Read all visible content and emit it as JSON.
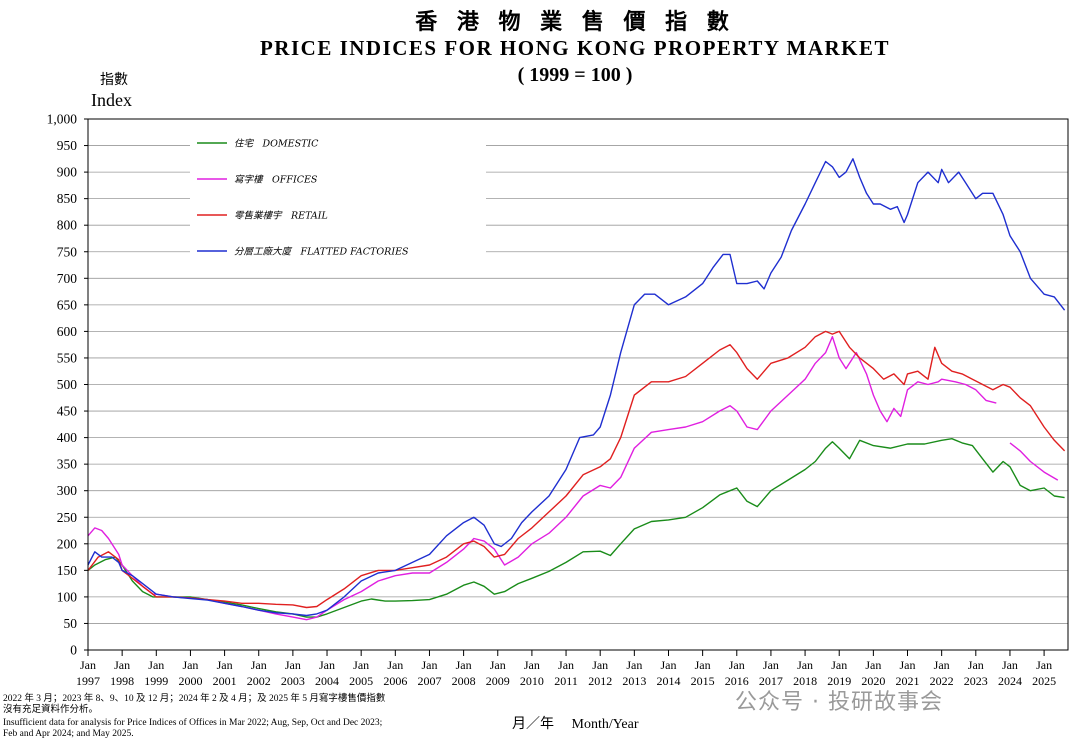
{
  "title_cn": "香 港 物 業 售 價 指 數",
  "title_en": "PRICE INDICES FOR HONG KONG PROPERTY MARKET",
  "base_note": "( 1999 = 100 )",
  "ylabel_cn": "指數",
  "xlabel": "月／年 　Month/Year",
  "footnote": {
    "line1": "2022 年 3 月；2023 年 8、9、10 及 12 月；2024 年 2 及 4 月；及 2025 年 5 月寫字樓售價指數",
    "line2": "沒有充足資料作分析。",
    "line3": "Insufficient data for analysis for Price Indices of Offices in Mar 2022; Aug, Sep, Oct and Dec 2023;",
    "line4": "Feb and Apr 2024; and May 2025."
  },
  "watermark": "公众号 · 投研故事会",
  "chart_data": {
    "type": "line",
    "title": "PRICE INDICES FOR HONG KONG PROPERTY MARKET (1999 = 100)",
    "xlabel": "月／年 Month/Year",
    "ylabel": "Index",
    "xlim": [
      1997.0,
      2025.7
    ],
    "ylim": [
      0,
      1000
    ],
    "grid": true,
    "y_ticks": [
      0,
      50,
      100,
      150,
      200,
      250,
      300,
      350,
      400,
      450,
      500,
      550,
      600,
      650,
      700,
      750,
      800,
      850,
      900,
      950,
      1000
    ],
    "y_tick_labels": [
      "0",
      "50",
      "100",
      "150",
      "200",
      "250",
      "300",
      "350",
      "400",
      "450",
      "500",
      "550",
      "600",
      "650",
      "700",
      "750",
      "800",
      "850",
      "900",
      "950",
      "1,000"
    ],
    "x_ticks": [
      1997,
      1998,
      1999,
      2000,
      2001,
      2002,
      2003,
      2004,
      2005,
      2006,
      2007,
      2008,
      2009,
      2010,
      2011,
      2012,
      2013,
      2014,
      2015,
      2016,
      2017,
      2018,
      2019,
      2020,
      2021,
      2022,
      2023,
      2024,
      2025
    ],
    "x_tick_month": "Jan",
    "x_tick_labels": [
      "1997",
      "1998",
      "1999",
      "2000",
      "2001",
      "2002",
      "2003",
      "2004",
      "2005",
      "2006",
      "2007",
      "2008",
      "2009",
      "2010",
      "2011",
      "2012",
      "2013",
      "2014",
      "2015",
      "2016",
      "2017",
      "2018",
      "2019",
      "2020",
      "2021",
      "2022",
      "2023",
      "2024",
      "2025"
    ],
    "legend_position": "top-left",
    "series": [
      {
        "name": "住宅　DOMESTIC",
        "color": "#1a8c1a",
        "x": [
          1997.0,
          1997.2,
          1997.5,
          1997.8,
          1998.0,
          1998.3,
          1998.6,
          1998.9,
          1999.0,
          1999.5,
          2000.0,
          2000.5,
          2001.0,
          2001.5,
          2002.0,
          2002.5,
          2003.0,
          2003.4,
          2003.7,
          2004.0,
          2004.5,
          2005.0,
          2005.3,
          2005.7,
          2006.0,
          2006.5,
          2007.0,
          2007.5,
          2008.0,
          2008.3,
          2008.6,
          2008.9,
          2009.2,
          2009.6,
          2010.0,
          2010.5,
          2011.0,
          2011.5,
          2012.0,
          2012.3,
          2012.6,
          2013.0,
          2013.5,
          2014.0,
          2014.5,
          2015.0,
          2015.5,
          2015.8,
          2016.0,
          2016.3,
          2016.6,
          2017.0,
          2017.5,
          2018.0,
          2018.3,
          2018.6,
          2018.8,
          2019.0,
          2019.3,
          2019.6,
          2020.0,
          2020.5,
          2021.0,
          2021.5,
          2022.0,
          2022.3,
          2022.6,
          2022.9,
          2023.2,
          2023.5,
          2023.8,
          2024.0,
          2024.3,
          2024.6,
          2025.0,
          2025.3,
          2025.6
        ],
        "values": [
          150,
          160,
          170,
          175,
          160,
          130,
          110,
          100,
          100,
          100,
          100,
          95,
          90,
          85,
          78,
          72,
          68,
          62,
          62,
          68,
          80,
          92,
          96,
          92,
          92,
          93,
          95,
          105,
          122,
          128,
          120,
          105,
          110,
          125,
          135,
          148,
          165,
          185,
          186,
          178,
          200,
          228,
          242,
          245,
          250,
          268,
          292,
          300,
          305,
          280,
          270,
          300,
          320,
          340,
          355,
          380,
          392,
          380,
          360,
          395,
          385,
          380,
          388,
          388,
          395,
          398,
          390,
          385,
          360,
          335,
          355,
          345,
          310,
          300,
          305,
          290,
          287
        ]
      },
      {
        "name": "寫字樓　OFFICES",
        "color": "#e020e0",
        "x": [
          1997.0,
          1997.2,
          1997.4,
          1997.6,
          1997.9,
          1998.0,
          1998.3,
          1998.6,
          1998.9,
          1999.0,
          1999.5,
          2000.0,
          2000.5,
          2001.0,
          2001.5,
          2002.0,
          2002.5,
          2003.0,
          2003.4,
          2003.7,
          2004.0,
          2004.5,
          2005.0,
          2005.5,
          2006.0,
          2006.5,
          2007.0,
          2007.5,
          2008.0,
          2008.3,
          2008.6,
          2008.9,
          2009.2,
          2009.6,
          2010.0,
          2010.5,
          2011.0,
          2011.5,
          2012.0,
          2012.3,
          2012.6,
          2013.0,
          2013.5,
          2014.0,
          2014.5,
          2015.0,
          2015.5,
          2015.8,
          2016.0,
          2016.3,
          2016.6,
          2017.0,
          2017.5,
          2018.0,
          2018.3,
          2018.6,
          2018.8,
          2019.0,
          2019.2,
          2019.5,
          2019.8,
          2020.0,
          2020.2,
          2020.4,
          2020.6,
          2020.8,
          2021.0,
          2021.3,
          2021.6,
          2021.9,
          2022.0,
          2022.4,
          2022.7,
          2023.0,
          2023.3,
          2023.6
        ],
        "values": [
          215,
          230,
          225,
          210,
          180,
          160,
          140,
          120,
          105,
          105,
          100,
          98,
          95,
          88,
          82,
          75,
          68,
          62,
          57,
          62,
          75,
          95,
          110,
          130,
          140,
          145,
          145,
          165,
          190,
          210,
          205,
          190,
          160,
          175,
          200,
          220,
          250,
          290,
          310,
          305,
          325,
          380,
          410,
          415,
          420,
          430,
          450,
          460,
          450,
          420,
          415,
          450,
          480,
          510,
          540,
          560,
          590,
          550,
          530,
          560,
          520,
          480,
          450,
          430,
          455,
          440,
          490,
          505,
          500,
          505,
          510,
          505,
          500,
          490,
          470,
          465
        ]
      },
      {
        "name": "寫字樓　OFFICES (cont.)",
        "color": "#e020e0",
        "x": [
          2024.0,
          2024.3,
          2024.6,
          2025.0,
          2025.4
        ],
        "values": [
          390,
          375,
          355,
          335,
          320
        ]
      },
      {
        "name": "零售業樓宇　RETAIL",
        "color": "#e02020",
        "x": [
          1997.0,
          1997.3,
          1997.6,
          1997.9,
          1998.0,
          1998.3,
          1998.6,
          1998.9,
          1999.0,
          1999.5,
          2000.0,
          2000.5,
          2001.0,
          2001.5,
          2002.0,
          2002.5,
          2003.0,
          2003.4,
          2003.7,
          2004.0,
          2004.5,
          2005.0,
          2005.5,
          2006.0,
          2006.5,
          2007.0,
          2007.5,
          2008.0,
          2008.3,
          2008.6,
          2008.9,
          2009.2,
          2009.6,
          2010.0,
          2010.5,
          2011.0,
          2011.5,
          2012.0,
          2012.3,
          2012.6,
          2013.0,
          2013.5,
          2014.0,
          2014.5,
          2015.0,
          2015.5,
          2015.8,
          2016.0,
          2016.3,
          2016.6,
          2017.0,
          2017.5,
          2018.0,
          2018.3,
          2018.6,
          2018.8,
          2019.0,
          2019.3,
          2019.6,
          2020.0,
          2020.3,
          2020.6,
          2020.9,
          2021.0,
          2021.3,
          2021.6,
          2021.8,
          2022.0,
          2022.3,
          2022.6,
          2022.9,
          2023.2,
          2023.5,
          2023.8,
          2024.0,
          2024.3,
          2024.6,
          2025.0,
          2025.3,
          2025.6
        ],
        "values": [
          150,
          175,
          185,
          170,
          150,
          135,
          120,
          105,
          100,
          100,
          98,
          95,
          92,
          88,
          88,
          86,
          85,
          80,
          82,
          95,
          115,
          140,
          150,
          150,
          155,
          160,
          175,
          200,
          205,
          195,
          175,
          180,
          210,
          230,
          260,
          290,
          330,
          345,
          360,
          400,
          480,
          505,
          505,
          515,
          540,
          565,
          575,
          560,
          530,
          510,
          540,
          550,
          570,
          590,
          600,
          595,
          600,
          570,
          550,
          530,
          510,
          520,
          500,
          520,
          525,
          510,
          570,
          540,
          525,
          520,
          510,
          500,
          490,
          500,
          495,
          475,
          460,
          420,
          395,
          375
        ]
      },
      {
        "name": "分層工廠大廈　FLATTED FACTORIES",
        "color": "#1f2fd0",
        "x": [
          1997.0,
          1997.2,
          1997.4,
          1997.7,
          1997.9,
          1998.0,
          1998.3,
          1998.6,
          1998.9,
          1999.0,
          1999.5,
          2000.0,
          2000.5,
          2001.0,
          2001.5,
          2002.0,
          2002.5,
          2003.0,
          2003.4,
          2003.7,
          2004.0,
          2004.5,
          2005.0,
          2005.5,
          2006.0,
          2006.5,
          2007.0,
          2007.5,
          2008.0,
          2008.3,
          2008.6,
          2008.9,
          2009.1,
          2009.4,
          2009.7,
          2010.0,
          2010.5,
          2011.0,
          2011.4,
          2011.8,
          2012.0,
          2012.3,
          2012.6,
          2013.0,
          2013.3,
          2013.6,
          2014.0,
          2014.5,
          2015.0,
          2015.3,
          2015.6,
          2015.8,
          2016.0,
          2016.3,
          2016.6,
          2016.8,
          2017.0,
          2017.3,
          2017.6,
          2018.0,
          2018.3,
          2018.6,
          2018.8,
          2019.0,
          2019.2,
          2019.4,
          2019.6,
          2019.8,
          2020.0,
          2020.2,
          2020.5,
          2020.7,
          2020.9,
          2021.0,
          2021.3,
          2021.6,
          2021.9,
          2022.0,
          2022.2,
          2022.5,
          2022.7,
          2023.0,
          2023.2,
          2023.5,
          2023.8,
          2024.0,
          2024.3,
          2024.6,
          2025.0,
          2025.3,
          2025.6
        ],
        "values": [
          160,
          185,
          175,
          175,
          165,
          150,
          140,
          125,
          110,
          105,
          100,
          97,
          94,
          88,
          82,
          75,
          70,
          68,
          65,
          68,
          75,
          100,
          130,
          145,
          150,
          165,
          180,
          215,
          240,
          250,
          235,
          200,
          195,
          210,
          240,
          260,
          290,
          340,
          400,
          405,
          420,
          480,
          560,
          650,
          670,
          670,
          650,
          665,
          690,
          720,
          745,
          745,
          690,
          690,
          695,
          680,
          710,
          740,
          790,
          840,
          880,
          920,
          910,
          890,
          900,
          925,
          890,
          860,
          840,
          840,
          830,
          835,
          805,
          820,
          880,
          900,
          880,
          905,
          880,
          900,
          880,
          850,
          860,
          860,
          820,
          780,
          750,
          700,
          670,
          665,
          640
        ]
      }
    ]
  }
}
